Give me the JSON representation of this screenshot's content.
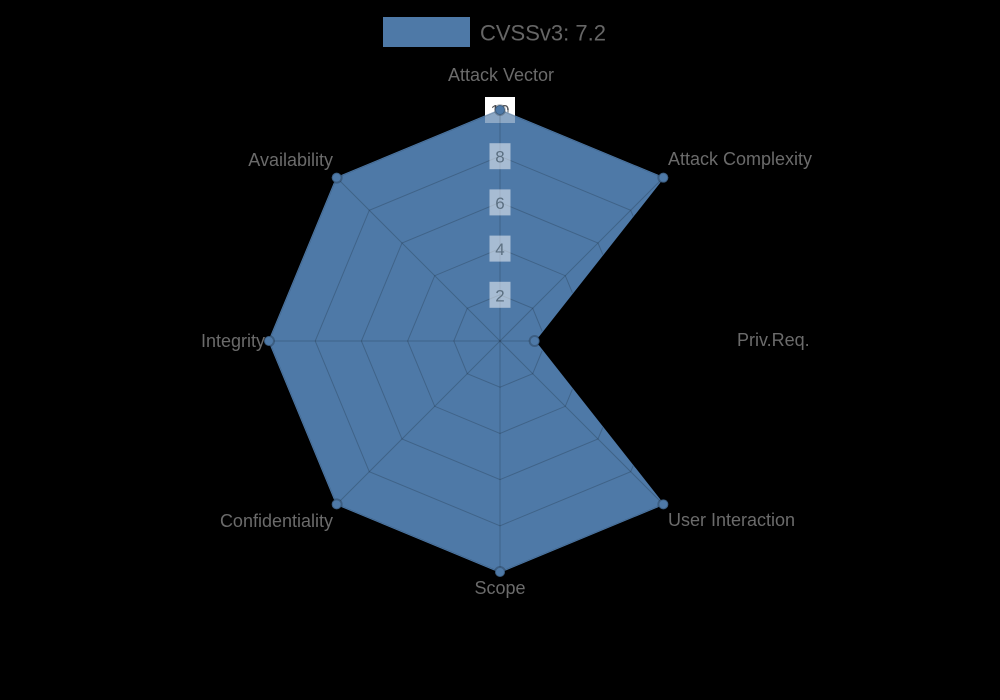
{
  "legend": {
    "label": "CVSSv3: 7.2",
    "swatch_color": "#4e79a7"
  },
  "chart_data": {
    "type": "radar",
    "title": "CVSSv3: 7.2",
    "axes": [
      "Attack Vector",
      "Attack Complexity",
      "Priv.Req.",
      "User Interaction",
      "Scope",
      "Confidentiality",
      "Integrity",
      "Availability"
    ],
    "series": [
      {
        "name": "CVSSv3: 7.2",
        "values": [
          10,
          10,
          1.5,
          10,
          10,
          10,
          10,
          10
        ]
      }
    ],
    "radial_ticks": [
      2,
      4,
      6,
      8,
      10
    ],
    "range": [
      0,
      10
    ],
    "start_angle_deg": 90,
    "direction": "clockwise",
    "grid": "polygonal-web",
    "legend_position": "top-center"
  },
  "colors": {
    "background": "#000000",
    "series_fill": "#4e79a7",
    "series_stroke": "#4e79a7",
    "marker_fill": "#4e79a7",
    "marker_ring": "rgba(0,0,0,0.22)",
    "grid_line": "rgba(0,0,0,0.18)",
    "axis_label": "#6b6b6b",
    "legend_text": "#666666",
    "tick_box": "rgba(255,255,255,0.5)",
    "tick_text": "#5c7082",
    "tick10_box": "#ffffff",
    "tick10_text": "#515358"
  }
}
